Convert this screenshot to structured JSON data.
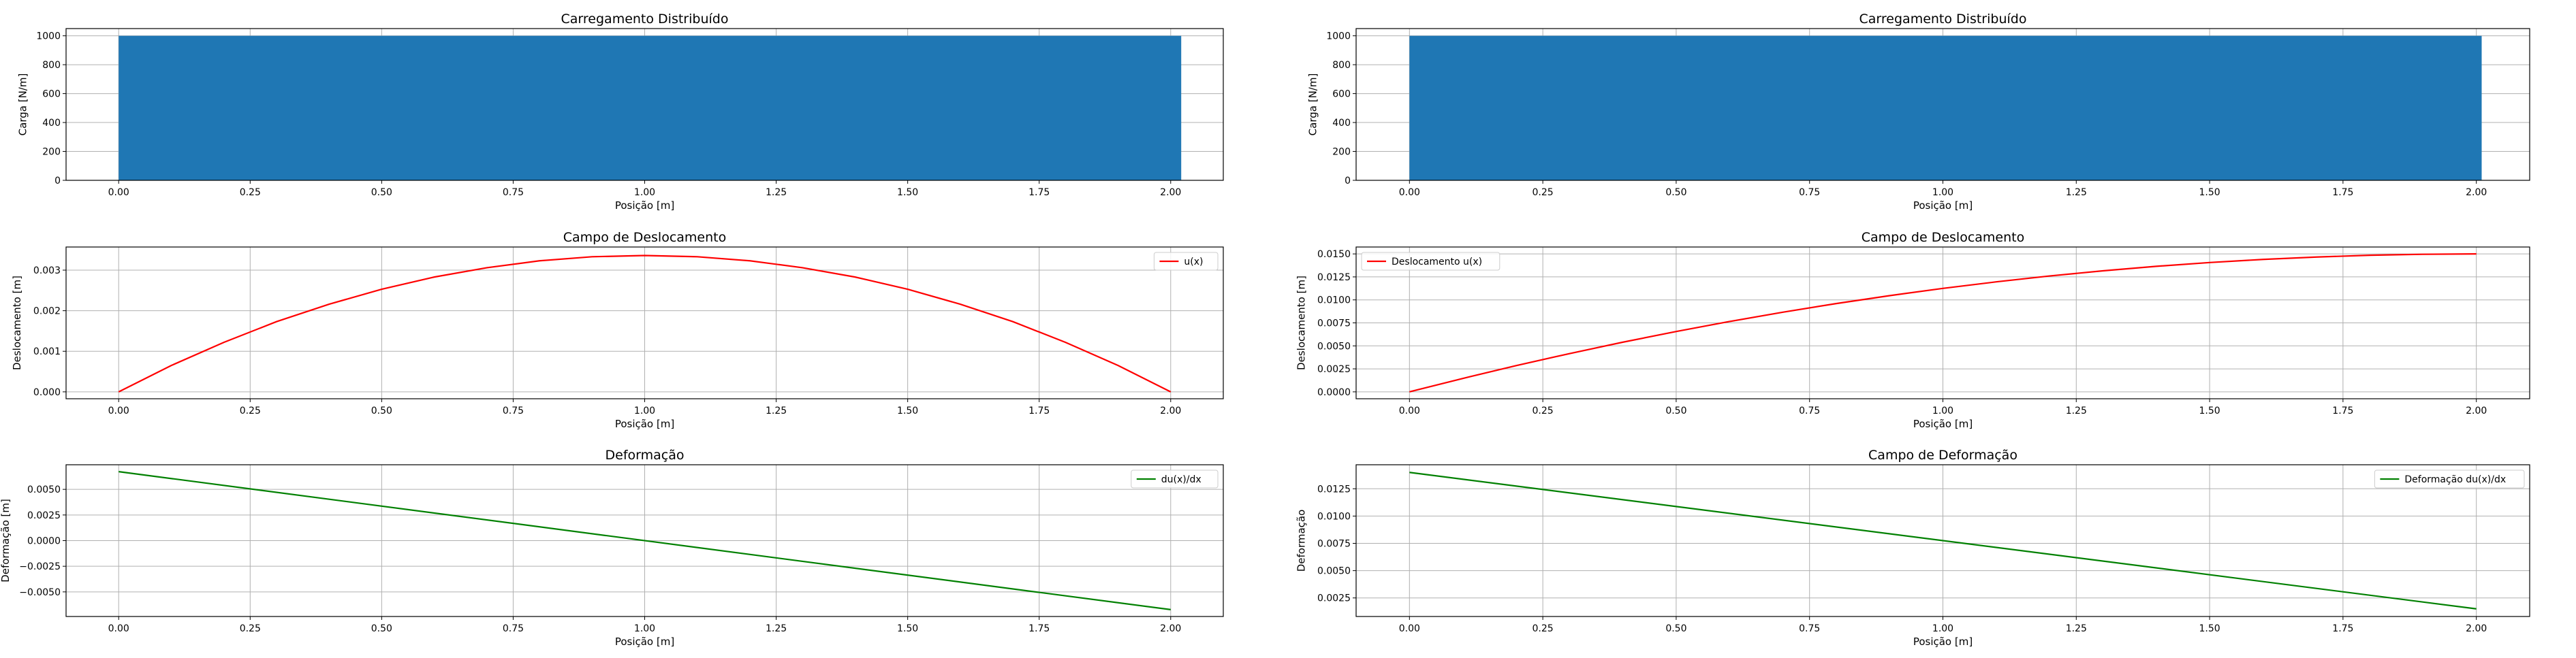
{
  "figure": {
    "background": "#ffffff"
  },
  "chart_data": [
    {
      "id": "left-top",
      "type": "bar",
      "title": "Carregamento Distribuído",
      "xlabel": "Posição [m]",
      "ylabel": "Carga [N/m]",
      "xlim": [
        -0.1,
        2.1
      ],
      "ylim": [
        0,
        1050
      ],
      "xticks": [
        0.0,
        0.25,
        0.5,
        0.75,
        1.0,
        1.25,
        1.5,
        1.75,
        2.0
      ],
      "xtick_labels": [
        "0.00",
        "0.25",
        "0.50",
        "0.75",
        "1.00",
        "1.25",
        "1.50",
        "1.75",
        "2.00"
      ],
      "yticks": [
        0,
        200,
        400,
        600,
        800,
        1000
      ],
      "ytick_labels": [
        "0",
        "200",
        "400",
        "600",
        "800",
        "1000"
      ],
      "bar": {
        "x_start": 0.0,
        "x_end": 2.02,
        "value": 1000
      },
      "color": "#1f77b4",
      "grid": true
    },
    {
      "id": "right-top",
      "type": "bar",
      "title": "Carregamento Distribuído",
      "xlabel": "Posição [m]",
      "ylabel": "Carga [N/m]",
      "xlim": [
        -0.1,
        2.1
      ],
      "ylim": [
        0,
        1050
      ],
      "xticks": [
        0.0,
        0.25,
        0.5,
        0.75,
        1.0,
        1.25,
        1.5,
        1.75,
        2.0
      ],
      "xtick_labels": [
        "0.00",
        "0.25",
        "0.50",
        "0.75",
        "1.00",
        "1.25",
        "1.50",
        "1.75",
        "2.00"
      ],
      "yticks": [
        0,
        200,
        400,
        600,
        800,
        1000
      ],
      "ytick_labels": [
        "0",
        "200",
        "400",
        "600",
        "800",
        "1000"
      ],
      "bar": {
        "x_start": 0.0,
        "x_end": 2.01,
        "value": 1000
      },
      "color": "#1f77b4",
      "grid": true
    },
    {
      "id": "left-mid",
      "type": "line",
      "title": "Campo de Deslocamento",
      "xlabel": "Posição [m]",
      "ylabel": "Deslocamento [m]",
      "xlim": [
        -0.1,
        2.1
      ],
      "ylim": [
        -0.00017,
        0.00357
      ],
      "xticks": [
        0.0,
        0.25,
        0.5,
        0.75,
        1.0,
        1.25,
        1.5,
        1.75,
        2.0
      ],
      "xtick_labels": [
        "0.00",
        "0.25",
        "0.50",
        "0.75",
        "1.00",
        "1.25",
        "1.50",
        "1.75",
        "2.00"
      ],
      "yticks": [
        0.0,
        0.001,
        0.002,
        0.003
      ],
      "ytick_labels": [
        "0.000",
        "0.001",
        "0.002",
        "0.003"
      ],
      "legend_position": "top-right",
      "grid": true,
      "series": [
        {
          "name": "u(x)",
          "color": "#ff0000",
          "x": [
            0.0,
            0.1,
            0.2,
            0.3,
            0.4,
            0.5,
            0.6,
            0.7,
            0.8,
            0.9,
            1.0,
            1.1,
            1.2,
            1.3,
            1.4,
            1.5,
            1.6,
            1.7,
            1.8,
            1.9,
            2.0
          ],
          "y": [
            0.0,
            0.00065,
            0.00122,
            0.00173,
            0.00216,
            0.00253,
            0.00283,
            0.00306,
            0.00323,
            0.00333,
            0.00336,
            0.00333,
            0.00323,
            0.00306,
            0.00283,
            0.00253,
            0.00216,
            0.00173,
            0.00122,
            0.00065,
            0.0
          ]
        }
      ]
    },
    {
      "id": "right-mid",
      "type": "line",
      "title": "Campo de Deslocamento",
      "xlabel": "Posição [m]",
      "ylabel": "Deslocamento [m]",
      "xlim": [
        -0.1,
        2.1
      ],
      "ylim": [
        -0.00075,
        0.01575
      ],
      "xticks": [
        0.0,
        0.25,
        0.5,
        0.75,
        1.0,
        1.25,
        1.5,
        1.75,
        2.0
      ],
      "xtick_labels": [
        "0.00",
        "0.25",
        "0.50",
        "0.75",
        "1.00",
        "1.25",
        "1.50",
        "1.75",
        "2.00"
      ],
      "yticks": [
        0.0,
        0.0025,
        0.005,
        0.0075,
        0.01,
        0.0125,
        0.015
      ],
      "ytick_labels": [
        "0.0000",
        "0.0025",
        "0.0050",
        "0.0075",
        "0.0100",
        "0.0125",
        "0.0150"
      ],
      "legend_position": "top-left",
      "grid": true,
      "series": [
        {
          "name": "Deslocamento u(x)",
          "color": "#ff0000",
          "x": [
            0.0,
            0.1,
            0.2,
            0.3,
            0.4,
            0.5,
            0.6,
            0.7,
            0.8,
            0.9,
            1.0,
            1.1,
            1.2,
            1.3,
            1.4,
            1.5,
            1.6,
            1.7,
            1.8,
            1.9,
            2.0
          ],
          "y": [
            0.0,
            0.00146,
            0.00285,
            0.00416,
            0.0054,
            0.00656,
            0.00765,
            0.00866,
            0.0096,
            0.01046,
            0.01125,
            0.01196,
            0.0126,
            0.01316,
            0.01365,
            0.01406,
            0.0144,
            0.01466,
            0.01485,
            0.01496,
            0.015
          ]
        }
      ]
    },
    {
      "id": "left-bottom",
      "type": "line",
      "title": "Deformação",
      "xlabel": "Posição [m]",
      "ylabel": "Deformação [m]",
      "xlim": [
        -0.1,
        2.1
      ],
      "ylim": [
        -0.0074,
        0.0074
      ],
      "xticks": [
        0.0,
        0.25,
        0.5,
        0.75,
        1.0,
        1.25,
        1.5,
        1.75,
        2.0
      ],
      "xtick_labels": [
        "0.00",
        "0.25",
        "0.50",
        "0.75",
        "1.00",
        "1.25",
        "1.50",
        "1.75",
        "2.00"
      ],
      "yticks": [
        -0.005,
        -0.0025,
        0.0,
        0.0025,
        0.005
      ],
      "ytick_labels": [
        "−0.0050",
        "−0.0025",
        "0.0000",
        "0.0025",
        "0.0050"
      ],
      "legend_position": "top-right",
      "grid": true,
      "series": [
        {
          "name": "du(x)/dx",
          "color": "#008000",
          "x": [
            0.0,
            2.0
          ],
          "y": [
            0.00673,
            -0.00673
          ]
        }
      ]
    },
    {
      "id": "right-bottom",
      "type": "line",
      "title": "Campo de Deformação",
      "xlabel": "Posição [m]",
      "ylabel": "Deformação",
      "xlim": [
        -0.1,
        2.1
      ],
      "ylim": [
        0.0008,
        0.0147
      ],
      "xticks": [
        0.0,
        0.25,
        0.5,
        0.75,
        1.0,
        1.25,
        1.5,
        1.75,
        2.0
      ],
      "xtick_labels": [
        "0.00",
        "0.25",
        "0.50",
        "0.75",
        "1.00",
        "1.25",
        "1.50",
        "1.75",
        "2.00"
      ],
      "yticks": [
        0.0025,
        0.005,
        0.0075,
        0.01,
        0.0125
      ],
      "ytick_labels": [
        "0.0025",
        "0.0050",
        "0.0075",
        "0.0100",
        "0.0125"
      ],
      "legend_position": "top-right",
      "grid": true,
      "series": [
        {
          "name": "Deformação du(x)/dx",
          "color": "#008000",
          "x": [
            0.0,
            2.0
          ],
          "y": [
            0.014,
            0.0015
          ]
        }
      ]
    }
  ]
}
